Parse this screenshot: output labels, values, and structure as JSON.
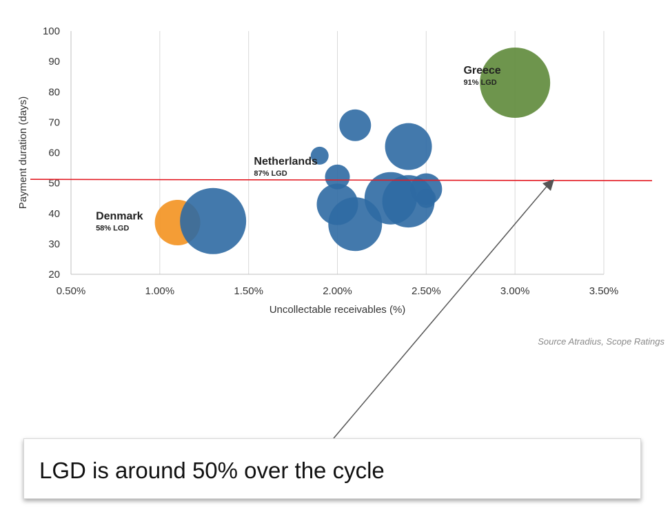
{
  "chart_data": {
    "type": "scatter",
    "subtype": "bubble",
    "xlabel": "Uncollectable receivables (%)",
    "ylabel": "Payment duration (days)",
    "xlim": [
      0.5,
      3.5
    ],
    "ylim": [
      20,
      100
    ],
    "xticks": [
      0.5,
      1.0,
      1.5,
      2.0,
      2.5,
      3.0,
      3.5
    ],
    "xtick_labels": [
      "0.50%",
      "1.00%",
      "1.50%",
      "2.00%",
      "2.50%",
      "3.00%",
      "3.50%"
    ],
    "yticks": [
      20,
      30,
      40,
      50,
      60,
      70,
      80,
      90,
      100
    ],
    "ytick_labels": [
      "20",
      "30",
      "40",
      "50",
      "60",
      "70",
      "80",
      "90",
      "100"
    ],
    "grid": "vertical",
    "reference_line": {
      "y": 51,
      "color": "#e31b23"
    },
    "colors": {
      "default": "#2f6aa3",
      "denmark": "#f39220",
      "greece": "#5e8a3a"
    },
    "points": [
      {
        "x": 3.0,
        "y": 83,
        "size": 51,
        "color": "#5e8a3a"
      },
      {
        "x": 1.1,
        "y": 37,
        "size": 33,
        "color": "#f39220"
      },
      {
        "x": 1.3,
        "y": 37.5,
        "size": 48,
        "color": "#2f6aa3"
      },
      {
        "x": 2.1,
        "y": 69,
        "size": 23,
        "color": "#2f6aa3"
      },
      {
        "x": 2.4,
        "y": 62,
        "size": 34,
        "color": "#2f6aa3"
      },
      {
        "x": 1.9,
        "y": 59,
        "size": 13,
        "color": "#2f6aa3"
      },
      {
        "x": 2.0,
        "y": 52,
        "size": 18,
        "color": "#2f6aa3"
      },
      {
        "x": 2.0,
        "y": 43,
        "size": 30,
        "color": "#2f6aa3"
      },
      {
        "x": 2.1,
        "y": 36.5,
        "size": 39,
        "color": "#2f6aa3"
      },
      {
        "x": 2.3,
        "y": 45,
        "size": 38,
        "color": "#2f6aa3"
      },
      {
        "x": 2.4,
        "y": 44,
        "size": 38,
        "color": "#2f6aa3"
      },
      {
        "x": 2.5,
        "y": 48,
        "size": 23,
        "color": "#2f6aa3"
      },
      {
        "x": 2.5,
        "y": 45,
        "size": 14,
        "color": "#2f6aa3"
      }
    ],
    "annotations": [
      {
        "name": "Greece",
        "sub": "91% LGD",
        "x": 2.71,
        "y": 86,
        "anchor": "start"
      },
      {
        "name": "Netherlands",
        "sub": "87% LGD",
        "x": 1.53,
        "y": 56,
        "anchor": "start"
      },
      {
        "name": "Denmark",
        "sub": "58% LGD",
        "x": 0.64,
        "y": 38,
        "anchor": "start"
      }
    ]
  },
  "source_text": "Source Atradius, Scope Ratings",
  "callout_text": "LGD is around 50% over the cycle"
}
